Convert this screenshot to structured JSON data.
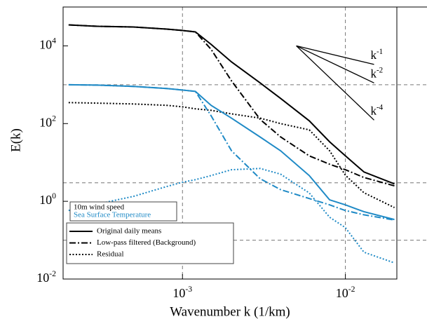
{
  "chart_data": {
    "type": "line",
    "xlabel": "Wavenumber k (1/km)",
    "ylabel": "E(k)",
    "xscale": "log",
    "yscale": "log",
    "xlim": [
      0.000185,
      0.0207
    ],
    "ylim": [
      0.01,
      100000
    ],
    "xticks": [
      {
        "value": 0.001,
        "label": "10",
        "exponent": "-3"
      },
      {
        "value": 0.01,
        "label": "10",
        "exponent": "-2"
      }
    ],
    "yticks": [
      {
        "value": 0.01,
        "label": "10",
        "exponent": "-2"
      },
      {
        "value": 1,
        "label": "10",
        "exponent": "0"
      },
      {
        "value": 100,
        "label": "10",
        "exponent": "2"
      },
      {
        "value": 10000,
        "label": "10",
        "exponent": "4"
      }
    ],
    "grid_x": [
      0.001,
      0.01
    ],
    "grid_y": [
      1000,
      3,
      0.1
    ],
    "x": [
      0.0002,
      0.0003,
      0.0005,
      0.0008,
      0.001,
      0.0012,
      0.0015,
      0.002,
      0.003,
      0.004,
      0.006,
      0.008,
      0.01,
      0.013,
      0.02
    ],
    "series": [
      {
        "color": "#000000",
        "dash": "solid",
        "values": [
          34600,
          31900,
          30600,
          27000,
          24900,
          22900,
          10900,
          3860,
          1110,
          446,
          118,
          34,
          14.8,
          5.7,
          2.8
        ]
      },
      {
        "color": "#000000",
        "dash": "dashdot",
        "values": [
          34600,
          31900,
          30600,
          27000,
          24900,
          22900,
          8100,
          1256,
          128,
          45.5,
          14.8,
          9.0,
          6.5,
          4.1,
          2.5
        ]
      },
      {
        "color": "#000000",
        "dash": "dotted",
        "values": [
          347,
          336,
          320,
          295,
          270,
          240,
          219,
          178,
          138,
          100,
          69,
          20,
          4.7,
          1.66,
          0.69
        ]
      },
      {
        "color": "#1f8ac6",
        "dash": "solid",
        "values": [
          1000,
          977,
          906,
          800,
          730,
          675,
          294,
          138,
          45,
          20,
          4.6,
          1.09,
          0.81,
          0.54,
          0.34
        ]
      },
      {
        "color": "#1f8ac6",
        "dash": "dashdot",
        "values": [
          1000,
          977,
          906,
          800,
          730,
          675,
          158,
          20,
          3.8,
          2.0,
          1.18,
          0.81,
          0.58,
          0.45,
          0.33
        ]
      },
      {
        "color": "#1f8ac6",
        "dash": "dotted",
        "values": [
          0.58,
          0.85,
          1.34,
          2.4,
          3.1,
          3.6,
          4.6,
          6.5,
          7.0,
          5.0,
          1.64,
          0.39,
          0.21,
          0.049,
          0.026
        ]
      }
    ],
    "slope_lines": [
      {
        "label": "k",
        "exponent": "-1",
        "x": [
          0.005,
          0.015
        ],
        "y": [
          10000,
          3333
        ]
      },
      {
        "label": "k",
        "exponent": "-2",
        "x": [
          0.005,
          0.015
        ],
        "y": [
          10000,
          1111
        ]
      },
      {
        "label": "k",
        "exponent": "-4",
        "x": [
          0.005,
          0.015
        ],
        "y": [
          10000,
          123
        ]
      }
    ],
    "legend": {
      "location": "lower left",
      "variables": [
        {
          "name": "10m wind speed",
          "color": "#000000"
        },
        {
          "name": "Sea Surface Temperature",
          "color": "#1f8ac6"
        }
      ],
      "styles": [
        {
          "name": "Original daily means",
          "dash": "solid"
        },
        {
          "name": "Low-pass filtered (Background)",
          "dash": "dashdot"
        },
        {
          "name": "Residual",
          "dash": "dotted"
        }
      ]
    }
  }
}
